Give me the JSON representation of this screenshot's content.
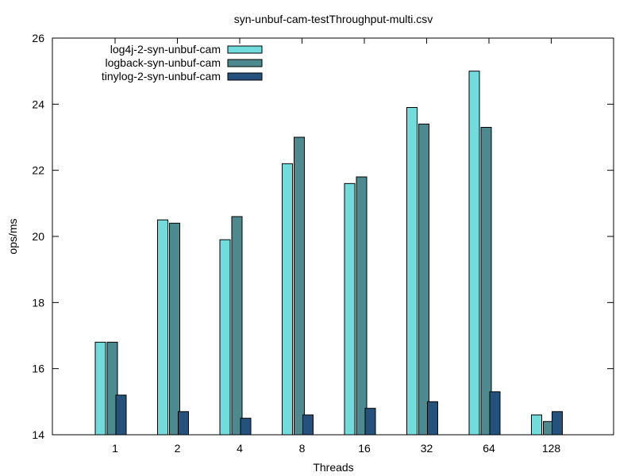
{
  "chart_data": {
    "type": "bar",
    "title": "syn-unbuf-cam-testThroughput-multi.csv",
    "xlabel": "Threads",
    "ylabel": "ops/ms",
    "categories": [
      "1",
      "2",
      "4",
      "8",
      "16",
      "32",
      "64",
      "128"
    ],
    "ylim": [
      14,
      26
    ],
    "yticks": [
      "14",
      "16",
      "18",
      "20",
      "22",
      "24",
      "26"
    ],
    "grid": false,
    "legend_position": "top-left",
    "series": [
      {
        "name": "log4j-2-syn-unbuf-cam",
        "color": "#72dbdb",
        "values": [
          16.8,
          20.5,
          19.9,
          22.2,
          21.6,
          23.9,
          25.0,
          14.6
        ]
      },
      {
        "name": "logback-syn-unbuf-cam",
        "color": "#4d8a90",
        "values": [
          16.8,
          20.4,
          20.6,
          23.0,
          21.8,
          23.4,
          23.3,
          14.4
        ]
      },
      {
        "name": "tinylog-2-syn-unbuf-cam",
        "color": "#24527c",
        "values": [
          15.2,
          14.7,
          14.5,
          14.6,
          14.8,
          15.0,
          15.3,
          14.7
        ]
      }
    ]
  }
}
